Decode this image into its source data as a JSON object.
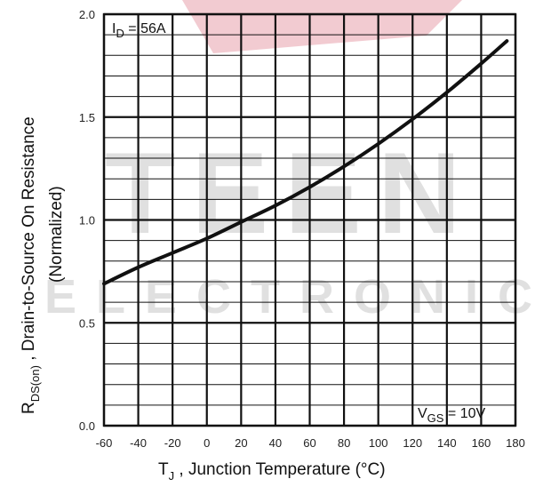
{
  "chart_data": {
    "type": "line",
    "title": "",
    "x": [
      -60,
      -40,
      -20,
      0,
      20,
      40,
      60,
      80,
      100,
      120,
      140,
      160,
      175
    ],
    "series": [
      {
        "values": [
          0.69,
          0.77,
          0.84,
          0.91,
          0.99,
          1.07,
          1.16,
          1.26,
          1.37,
          1.49,
          1.62,
          1.76,
          1.87
        ]
      }
    ],
    "xlim": [
      -60,
      180
    ],
    "ylim": [
      0.0,
      2.0
    ],
    "xticks": [
      "-60",
      "-40",
      "-20",
      "0",
      "20",
      "40",
      "60",
      "80",
      "100",
      "120",
      "140",
      "160",
      "180"
    ],
    "yticks": [
      "0.0",
      "0.5",
      "1.0",
      "1.5",
      "2.0"
    ],
    "xlabel": {
      "main": "T",
      "sub": "J",
      "rest": " , Junction Temperature (°C)"
    },
    "ylabel": {
      "main": "R",
      "sub": "DS(on)",
      "rest": " ,  Drain-to-Source On Resistance"
    },
    "ylabel2": "(Normalized)",
    "annotations": {
      "id": {
        "prefix": "I",
        "sub": "D",
        "rest": " = 56A"
      },
      "vgs": {
        "prefix": "V",
        "sub": "GS",
        "rest": " = 10V"
      }
    },
    "grid": true,
    "watermark": {
      "text1": "TEEN",
      "text2": "ELECTRONIC"
    },
    "colors": {
      "line": "#111111",
      "grid": "#111111",
      "watermark": "#d9d9d9",
      "watermark_accent": "#e8a0ac"
    }
  }
}
